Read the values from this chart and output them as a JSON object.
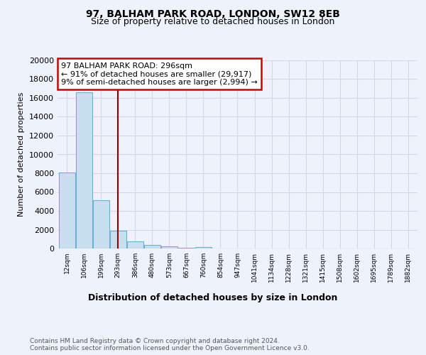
{
  "title": "97, BALHAM PARK ROAD, LONDON, SW12 8EB",
  "subtitle": "Size of property relative to detached houses in London",
  "xlabel": "Distribution of detached houses by size in London",
  "ylabel": "Number of detached properties",
  "annotation_text": "97 BALHAM PARK ROAD: 296sqm\n← 91% of detached houses are smaller (29,917)\n9% of semi-detached houses are larger (2,994) →",
  "bar_color": "#c8dff0",
  "bar_edge_color": "#6baed6",
  "vline_color": "#8B0000",
  "annotation_box_edge": "#cc0000",
  "bin_labels": [
    "12sqm",
    "106sqm",
    "199sqm",
    "293sqm",
    "386sqm",
    "480sqm",
    "573sqm",
    "667sqm",
    "760sqm",
    "854sqm",
    "947sqm",
    "1041sqm",
    "1134sqm",
    "1228sqm",
    "1321sqm",
    "1415sqm",
    "1508sqm",
    "1602sqm",
    "1695sqm",
    "1789sqm",
    "1882sqm"
  ],
  "bar_heights": [
    8050,
    16600,
    5100,
    1900,
    780,
    350,
    200,
    100,
    150,
    0,
    0,
    0,
    0,
    0,
    0,
    0,
    0,
    0,
    0,
    0,
    0
  ],
  "vline_x": 3.0,
  "ylim": [
    0,
    20000
  ],
  "yticks": [
    0,
    2000,
    4000,
    6000,
    8000,
    10000,
    12000,
    14000,
    16000,
    18000,
    20000
  ],
  "footer": "Contains HM Land Registry data © Crown copyright and database right 2024.\nContains public sector information licensed under the Open Government Licence v3.0.",
  "background_color": "#eef2fb",
  "grid_color": "#d0d8e8"
}
